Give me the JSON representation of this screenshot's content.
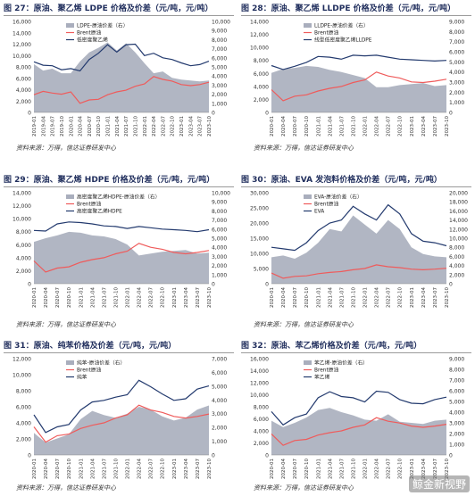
{
  "source_text": "资料来源：万得，信达证券研发中心",
  "watermark": "鲸金新视野",
  "chart_data": [
    {
      "id": "p27",
      "type": "area",
      "title": "图 27：原油、聚乙烯 LDPE 价格及价差（元/吨，元/吨）",
      "legend": [
        "LDPE-原油价差（右）",
        "Brent原油",
        "低密度聚乙烯"
      ],
      "left_axis": {
        "min": 0,
        "max": 16000,
        "ticks": [
          0,
          2000,
          4000,
          6000,
          8000,
          10000,
          12000,
          14000,
          16000
        ]
      },
      "right_axis": {
        "min": 0,
        "max": 10000,
        "ticks": [
          0,
          1000,
          2000,
          3000,
          4000,
          5000,
          6000,
          7000,
          8000,
          9000,
          10000
        ]
      },
      "x_labels": [
        "2019-01",
        "2019-04",
        "2019-07",
        "2019-10",
        "2020-01",
        "2020-04",
        "2020-07",
        "2020-10",
        "2021-01",
        "2021-04",
        "2021-07",
        "2021-10",
        "2022-01",
        "2022-04",
        "2022-07",
        "2022-10",
        "2023-01",
        "2023-04",
        "2023-07",
        "2023-10"
      ],
      "series": [
        {
          "name": "LDPE-原油价差（右）",
          "axis": "right",
          "kind": "area",
          "color": "#a9aebd",
          "values": [
            5300,
            4600,
            4800,
            4300,
            4300,
            5600,
            6600,
            7100,
            7700,
            6800,
            7600,
            6600,
            5400,
            4300,
            4500,
            3800,
            3600,
            3500,
            3400,
            3500
          ]
        },
        {
          "name": "Brent原油",
          "axis": "left",
          "kind": "line",
          "color": "#ef5b5b",
          "values": [
            3100,
            3700,
            3400,
            3200,
            3600,
            1600,
            2200,
            2300,
            3100,
            3600,
            3900,
            4600,
            5000,
            6300,
            5800,
            5500,
            4900,
            4700,
            4900,
            5300
          ]
        },
        {
          "name": "低密度聚乙烯",
          "axis": "left",
          "kind": "line",
          "color": "#233a6e",
          "values": [
            8900,
            8300,
            8200,
            7500,
            7700,
            7300,
            9300,
            10400,
            11900,
            10600,
            11900,
            12000,
            10000,
            10400,
            9600,
            9300,
            8700,
            8200,
            8400,
            9000
          ]
        }
      ]
    },
    {
      "id": "p28",
      "type": "area",
      "title": "图 28：原油、聚乙烯 LLDPE 价格及价差（元/吨，元/吨）",
      "legend": [
        "LLDPE-原油价差（右）",
        "Brent原油",
        "线型低密度聚乙烯LLDPE"
      ],
      "left_axis": {
        "min": 0,
        "max": 14000,
        "ticks": [
          0,
          2000,
          4000,
          6000,
          8000,
          10000,
          12000,
          14000
        ]
      },
      "right_axis": {
        "min": 0,
        "max": 9000,
        "ticks": [
          0,
          1000,
          2000,
          3000,
          4000,
          5000,
          6000,
          7000,
          8000,
          9000
        ]
      },
      "x_labels": [
        "2020-01",
        "2020-04",
        "2020-07",
        "2020-10",
        "2021-01",
        "2021-04",
        "2021-07",
        "2021-10",
        "2022-01",
        "2022-04",
        "2022-07",
        "2022-10",
        "2023-01",
        "2023-04",
        "2023-07",
        "2023-10"
      ],
      "series": [
        {
          "name": "LLDPE-原油价差（右）",
          "axis": "right",
          "kind": "area",
          "color": "#a9aebd",
          "values": [
            3900,
            4300,
            4400,
            4600,
            4500,
            4200,
            4000,
            3700,
            3400,
            2500,
            2500,
            2700,
            2800,
            2900,
            2600,
            2700
          ]
        },
        {
          "name": "Brent原油",
          "axis": "left",
          "kind": "line",
          "color": "#ef5b5b",
          "values": [
            3500,
            1800,
            2500,
            2700,
            3300,
            3700,
            4000,
            4600,
            5000,
            6200,
            5600,
            5300,
            4700,
            4600,
            4800,
            5100
          ]
        },
        {
          "name": "线型低密度聚乙烯LLDPE",
          "axis": "left",
          "kind": "line",
          "color": "#233a6e",
          "values": [
            7200,
            6600,
            7100,
            7700,
            8600,
            8500,
            8200,
            8800,
            8700,
            8800,
            8500,
            8200,
            8100,
            8000,
            7900,
            8000
          ]
        }
      ]
    },
    {
      "id": "p29",
      "type": "area",
      "title": "图 29：原油、聚乙烯 HDPE 价格及价差（元/吨，元/吨）",
      "legend": [
        "高密度聚乙烯HDPE-原油价差（右）",
        "Brent原油",
        "高密度聚乙烯HDPE"
      ],
      "left_axis": {
        "min": 0,
        "max": 14000,
        "ticks": [
          0,
          2000,
          4000,
          6000,
          8000,
          10000,
          12000,
          14000
        ]
      },
      "right_axis": {
        "min": 0,
        "max": 10000,
        "ticks": [
          0,
          1000,
          2000,
          3000,
          4000,
          5000,
          6000,
          7000,
          8000,
          9000,
          10000
        ]
      },
      "x_labels": [
        "2020-01",
        "2020-04",
        "2020-07",
        "2020-10",
        "2021-01",
        "2021-04",
        "2021-07",
        "2021-10",
        "2022-01",
        "2022-04",
        "2022-07",
        "2022-10",
        "2023-01",
        "2023-04",
        "2023-07",
        "2023-10"
      ],
      "series": [
        {
          "name": "高密度聚乙烯HDPE-原油价差（右）",
          "axis": "right",
          "kind": "area",
          "color": "#a9aebd",
          "values": [
            4600,
            5000,
            5300,
            5700,
            5600,
            5300,
            5200,
            4900,
            4300,
            3100,
            3300,
            3500,
            3600,
            3700,
            3300,
            3400
          ]
        },
        {
          "name": "Brent原油",
          "axis": "left",
          "kind": "line",
          "color": "#ef5b5b",
          "values": [
            3500,
            1800,
            2400,
            2600,
            3300,
            3700,
            4000,
            4600,
            5000,
            6200,
            5600,
            5300,
            4800,
            4600,
            4800,
            5100
          ]
        },
        {
          "name": "高密度聚乙烯HDPE",
          "axis": "left",
          "kind": "line",
          "color": "#233a6e",
          "values": [
            8200,
            8100,
            9200,
            9500,
            9400,
            9200,
            8900,
            8800,
            8500,
            8800,
            8600,
            8400,
            8300,
            8200,
            8000,
            8300
          ]
        }
      ]
    },
    {
      "id": "p30",
      "type": "area",
      "title": "图 30：原油、EVA 发泡料价格及价差（元/吨，元/吨）",
      "legend": [
        "EVA-原油价差（右）",
        "Brent原油",
        "EVA"
      ],
      "left_axis": {
        "min": 0,
        "max": 30000,
        "ticks": [
          0,
          5000,
          10000,
          15000,
          20000,
          25000,
          30000
        ]
      },
      "right_axis": {
        "min": 0,
        "max": 20000,
        "ticks": [
          0,
          2000,
          4000,
          6000,
          8000,
          10000,
          12000,
          14000,
          16000,
          18000,
          20000
        ]
      },
      "x_labels": [
        "2020-01",
        "2020-04",
        "2020-07",
        "2020-10",
        "2021-01",
        "2021-04",
        "2021-07",
        "2021-10",
        "2022-01",
        "2022-04",
        "2022-07",
        "2022-10",
        "2023-01",
        "2023-04",
        "2023-07",
        "2023-10"
      ],
      "series": [
        {
          "name": "EVA-原油价差（右）",
          "axis": "right",
          "kind": "area",
          "color": "#a9aebd",
          "values": [
            5800,
            6200,
            5500,
            6800,
            9000,
            12000,
            11500,
            15000,
            13000,
            11000,
            14000,
            12000,
            8000,
            6500,
            6000,
            5800
          ]
        },
        {
          "name": "Brent原油",
          "axis": "left",
          "kind": "line",
          "color": "#ef5b5b",
          "values": [
            3500,
            1800,
            2400,
            2600,
            3300,
            3700,
            4000,
            4600,
            5000,
            6200,
            5600,
            5300,
            4800,
            4600,
            4800,
            5100
          ]
        },
        {
          "name": "EVA",
          "axis": "left",
          "kind": "line",
          "color": "#233a6e",
          "values": [
            12000,
            11500,
            11000,
            13500,
            17500,
            20000,
            21000,
            25500,
            23000,
            21000,
            26000,
            23000,
            16500,
            14000,
            13500,
            12500
          ]
        }
      ]
    },
    {
      "id": "p31",
      "type": "area",
      "title": "图 31：原油、纯苯价格及价差（元/吨，元/吨）",
      "legend": [
        "纯苯-原油价差（右）",
        "Brent原油",
        "纯苯"
      ],
      "left_axis": {
        "min": 0,
        "max": 12000,
        "ticks": [
          0,
          2000,
          4000,
          6000,
          8000,
          10000,
          12000
        ]
      },
      "right_axis": {
        "min": 0,
        "max": 7000,
        "ticks": [
          0,
          1000,
          2000,
          3000,
          4000,
          5000,
          6000,
          7000
        ]
      },
      "x_labels": [
        "2020-01",
        "2020-04",
        "2020-07",
        "2020-10",
        "2021-01",
        "2021-04",
        "2021-07",
        "2021-10",
        "2022-01",
        "2022-04",
        "2022-07",
        "2022-10",
        "2023-01",
        "2023-04",
        "2023-07",
        "2023-10"
      ],
      "series": [
        {
          "name": "纯苯-原油价差（右）",
          "axis": "right",
          "kind": "area",
          "color": "#a9aebd",
          "values": [
            1600,
            900,
            1200,
            1500,
            2600,
            3200,
            2900,
            2700,
            3000,
            3500,
            3300,
            2800,
            2500,
            2700,
            3300,
            3600
          ]
        },
        {
          "name": "Brent原油",
          "axis": "left",
          "kind": "line",
          "color": "#ef5b5b",
          "values": [
            3500,
            1600,
            2400,
            2600,
            3300,
            3700,
            4000,
            4600,
            5000,
            6200,
            5600,
            5300,
            4800,
            4600,
            4800,
            5100
          ]
        },
        {
          "name": "纯苯",
          "axis": "left",
          "kind": "line",
          "color": "#233a6e",
          "values": [
            5000,
            2800,
            3500,
            3800,
            5600,
            6600,
            6800,
            7200,
            7500,
            9300,
            8500,
            7600,
            6800,
            7000,
            8200,
            8600
          ]
        }
      ]
    },
    {
      "id": "p32",
      "type": "area",
      "title": "图 32：原油、苯乙烯价格及价差（元/吨，元/吨）",
      "legend": [
        "苯乙烯-原油价差（右）",
        "Brent原油",
        "苯乙烯"
      ],
      "left_axis": {
        "min": 0,
        "max": 16000,
        "ticks": [
          0,
          2000,
          4000,
          6000,
          8000,
          10000,
          12000,
          14000,
          16000
        ]
      },
      "right_axis": {
        "min": 0,
        "max": 9000,
        "ticks": [
          0,
          1000,
          2000,
          3000,
          4000,
          5000,
          6000,
          7000,
          8000,
          9000
        ]
      },
      "x_labels": [
        "2020-01",
        "2020-04",
        "2020-07",
        "2020-10",
        "2021-01",
        "2021-04",
        "2021-07",
        "2021-10",
        "2022-01",
        "2022-04",
        "2022-07",
        "2022-10",
        "2023-01",
        "2023-04",
        "2023-07",
        "2023-10"
      ],
      "series": [
        {
          "name": "苯乙烯-原油价差（右）",
          "axis": "right",
          "kind": "area",
          "color": "#a9aebd",
          "values": [
            3200,
            2600,
            3000,
            3500,
            4200,
            4400,
            4000,
            3700,
            3300,
            3200,
            3800,
            3100,
            3000,
            2900,
            3200,
            3300
          ]
        },
        {
          "name": "Brent原油",
          "axis": "left",
          "kind": "line",
          "color": "#ef5b5b",
          "values": [
            3500,
            1600,
            2400,
            2600,
            3300,
            3700,
            4000,
            4600,
            5000,
            6200,
            5600,
            5300,
            4800,
            4600,
            4800,
            5100
          ]
        },
        {
          "name": "苯乙烯",
          "axis": "left",
          "kind": "line",
          "color": "#233a6e",
          "values": [
            7200,
            5000,
            6200,
            6800,
            9500,
            10500,
            9700,
            9500,
            8800,
            10600,
            10400,
            9200,
            8600,
            8500,
            9200,
            9600
          ]
        }
      ]
    }
  ]
}
